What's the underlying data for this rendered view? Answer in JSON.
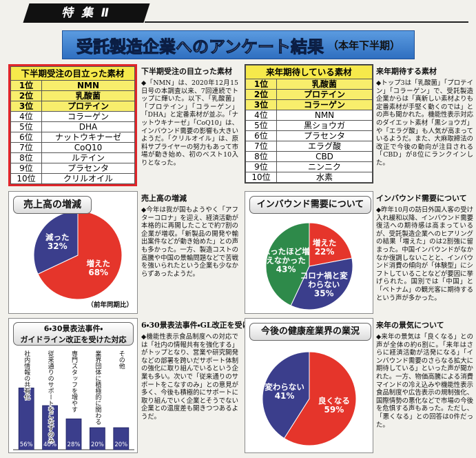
{
  "header": {
    "label": "特 集 Ⅱ"
  },
  "title": {
    "main": "受託製造企業へのアンケート結果",
    "sub": "（本年下半期）"
  },
  "tables": [
    {
      "title": "下半期受注の目立った素材",
      "rows": [
        [
          "1位",
          "NMN"
        ],
        [
          "2位",
          "乳酸菌"
        ],
        [
          "3位",
          "プロテイン"
        ],
        [
          "4位",
          "コラーゲン"
        ],
        [
          "5位",
          "DHA"
        ],
        [
          "6位",
          "ナットウキナーゼ"
        ],
        [
          "7位",
          "CoQ10"
        ],
        [
          "8位",
          "ルテイン"
        ],
        [
          "9位",
          "プラセンタ"
        ],
        [
          "10位",
          "クリルオイル"
        ]
      ]
    },
    {
      "title": "来年期待している素材",
      "rows": [
        [
          "1位",
          "乳酸菌"
        ],
        [
          "2位",
          "プロテイン"
        ],
        [
          "3位",
          "コラーゲン"
        ],
        [
          "4位",
          "NMN"
        ],
        [
          "5位",
          "黒ショウガ"
        ],
        [
          "6位",
          "プラセンタ"
        ],
        [
          "7位",
          "エラグ酸"
        ],
        [
          "8位",
          "CBD"
        ],
        [
          "9位",
          "ニンニク"
        ],
        [
          "10位",
          "水素"
        ]
      ]
    }
  ],
  "articles": [
    {
      "heading": "下半期受注の目立った素材",
      "body": "◆「NMN」は、2020年12月15日号の本調査以来、7回連続でトップに輝いた。以下、「乳酸菌」「プロテイン」「コラーゲン」「DHA」と定番素材が並ぶ。「ナットウキナーゼ」「CoQ10」は、インバウンド需要の影響も大きいようだ。「クリルオイル」は、原料サプライヤーの努力もあって市場が動き始め、初のベスト10入りとなった。"
    },
    {
      "heading": "来年期待する素材",
      "body": "◆トップ3は「乳酸菌」「プロテイン」「コラーゲン」で、受託製造企業からは「真新しい素材よりも定番素材が手堅く動くのでは」との声も聞かれた。機能性表示対応のダイエット素材「黒ショウガ」や「エラグ酸」も人気が高まっているようだ。また、大麻取締法の改正で今後の動向が注目される「CBD」が8位にランクインした。"
    },
    {
      "heading": "売上高の増減",
      "body": "◆今年は我が国もようやく「アフターコロナ」を迎え、経済活動が本格的に再開したことで約7割の企業が増収。「新製品の開発や輸出案件などが動き始めた」との声も多かった。一方、製造コストの高騰や中国の景輪問題などで苦戦を強いられたという企業も少なからずあったようだ。"
    },
    {
      "heading": "インバウンド需要について",
      "body": "◆昨年10月の訪日外国人客の受け入れ緩和以降、インバウンド需要復活への期待感は高まっているが、受託製造企業へのヒアリングの結果「増えた」のは2割強に留まった。中国インバウンドがなかなか復調しないことと、インバウンド消費の傾向が「体験型」にシフトしていることなどが要因に挙げられた。国別では「中国」と「ベトナム」の観光客に期待するという声が多かった。"
    },
    {
      "heading": "6・30景表法事件・GL改正を受けた対応",
      "body": "◆機能性表示食品制度への対応では「社内の情報共有を強化する」がトップとなり、営業や研究開発などの部署を跨いだサポート体制の強化に取り組んでいるという企業も多い。次いで「従来通りのサポートをこなすのみ」との意見が多く、今後も積極的にサポートに取り組んでいく企業とそうでない企業との温度差も開きつつあるようだ。"
    },
    {
      "heading": "来年の景気について",
      "body": "◆来年の景気は「良くなる」との声が全体の約6割に。「来年はさらに経済活動が活発になる」「インバウンド需要のさらなる拡大に期待している」といった声が聞かれた。一方、物価高騰による消費マインドの冷え込みや機能性表示食品制度や広告表示の規制強化、国際情勢の悪化などで市場の今後を危惧する声もあった。ただし、「悪くなる」との回答は0件だった。"
    }
  ],
  "chart_data": [
    {
      "type": "pie",
      "title": "売上高の増減",
      "categories": [
        "増えた",
        "減った"
      ],
      "values": [
        68,
        32
      ],
      "value_labels": [
        "68%",
        "32%"
      ],
      "colors": [
        "#e5352b",
        "#3b3e8c"
      ],
      "note": "（前年同期比）"
    },
    {
      "type": "pie",
      "title": "インバウンド需要について",
      "categories": [
        "増えた",
        "コロナ禍と変わらない",
        "思ったほど増えなかった"
      ],
      "values": [
        22,
        35,
        43
      ],
      "value_labels": [
        "22%",
        "35%",
        "43%"
      ],
      "colors": [
        "#e5352b",
        "#3b3e8c",
        "#2e8a4a"
      ]
    },
    {
      "type": "bar",
      "title": [
        "6・30景表法事件・",
        "ガイドライン改正を受けた対応"
      ],
      "categories": [
        "社内情報の共有化",
        "従来通りのサポートをこなすのみ",
        "専門スタッフを増やす",
        "業界団体に積極的に関わる",
        "その他"
      ],
      "values": [
        56,
        40,
        28,
        20,
        20
      ],
      "value_labels": [
        "56%",
        "40%",
        "28%",
        "20%",
        "20%"
      ],
      "color": "#3b3e8c"
    },
    {
      "type": "pie",
      "title": "今後の健康産業界の業況",
      "categories": [
        "良くなる",
        "変わらない"
      ],
      "values": [
        59,
        41
      ],
      "value_labels": [
        "59%",
        "41%"
      ],
      "colors": [
        "#e5352b",
        "#3b3e8c"
      ]
    }
  ]
}
